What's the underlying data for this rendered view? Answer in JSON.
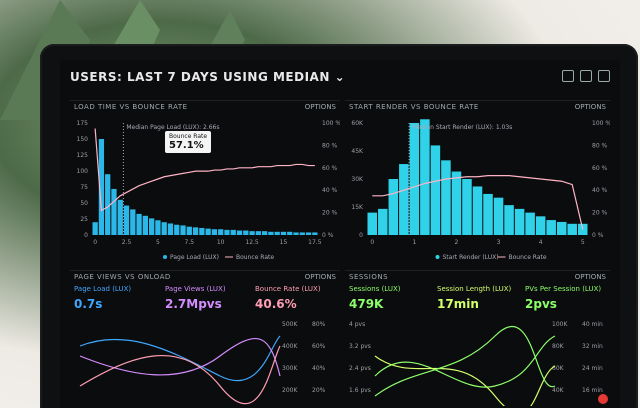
{
  "header": {
    "prefix": "USERS:",
    "range": "LAST 7 DAYS",
    "using": "USING",
    "metric": "MEDIAN"
  },
  "panels": {
    "load_vs_bounce": {
      "title": "LOAD TIME VS BOUNCE RATE",
      "options": "OPTIONS",
      "median_label": "Median Page Load (LUX): 2.66s",
      "tooltip_label": "Bounce Rate",
      "tooltip_value": "57.1%",
      "legend": [
        "Page Load (LUX)",
        "Bounce Rate"
      ]
    },
    "start_render": {
      "title": "START RENDER VS BOUNCE RATE",
      "options": "OPTIONS",
      "median_label": "Median Start Render (LUX): 1.03s",
      "legend": [
        "Start Render (LUX)",
        "Bounce Rate"
      ]
    },
    "page_views": {
      "title": "PAGE VIEWS VS ONLOAD",
      "options": "OPTIONS",
      "kpis": [
        {
          "label": "Page Load (LUX)",
          "value": "0.7s"
        },
        {
          "label": "Page Views (LUX)",
          "value": "2.7Mpvs"
        },
        {
          "label": "Bounce Rate (LUX)",
          "value": "40.6%"
        }
      ],
      "y_right": [
        "500K",
        "400K",
        "300K",
        "200K"
      ],
      "y_right2": [
        "80%",
        "60%",
        "40%",
        "20%"
      ]
    },
    "sessions": {
      "title": "SESSIONS",
      "options": "OPTIONS",
      "kpis": [
        {
          "label": "Sessions (LUX)",
          "value": "479K"
        },
        {
          "label": "Session Length (LUX)",
          "value": "17min"
        },
        {
          "label": "PVs Per Session (LUX)",
          "value": "2pvs"
        }
      ],
      "y_left": [
        "4 pvs",
        "3.2 pvs",
        "2.4 pvs",
        "1.6 pvs"
      ],
      "y_right": [
        "100K",
        "80K",
        "60K",
        "40K"
      ],
      "y_right2": [
        "40 min",
        "32 min",
        "24 min",
        "16 min"
      ]
    }
  },
  "chart_data": [
    {
      "type": "bar",
      "title": "LOAD TIME VS BOUNCE RATE",
      "x": [
        0,
        0.5,
        1,
        1.5,
        2,
        2.5,
        3,
        3.5,
        4,
        4.5,
        5,
        5.5,
        6,
        6.5,
        7,
        7.5,
        8,
        8.5,
        9,
        9.5,
        10,
        10.5,
        11,
        11.5,
        12,
        12.5,
        13,
        13.5,
        14,
        14.5,
        15,
        15.5,
        16,
        16.5,
        17,
        17.5
      ],
      "xticks": [
        "0",
        "2.5",
        "5",
        "7.5",
        "10",
        "12.5",
        "15",
        "17.5"
      ],
      "series": [
        {
          "name": "Page Load (LUX)",
          "values": [
            20,
            150,
            95,
            72,
            55,
            46,
            40,
            33,
            30,
            26,
            23,
            20,
            18,
            16,
            15,
            13,
            12,
            11,
            10,
            9,
            9,
            8,
            8,
            7,
            7,
            6,
            6,
            6,
            5,
            5,
            5,
            5,
            4,
            4,
            4,
            4
          ]
        },
        {
          "name": "Bounce Rate",
          "values": [
            95,
            22,
            25,
            30,
            35,
            38,
            41,
            44,
            46,
            48,
            50,
            52,
            53,
            54,
            55,
            56,
            57,
            57,
            57,
            58,
            58,
            59,
            59,
            60,
            60,
            60,
            61,
            61,
            61,
            62,
            62,
            62,
            63,
            63,
            62,
            62
          ]
        }
      ],
      "ylim_left": [
        0,
        175
      ],
      "yticks_left": [
        "0",
        "25",
        "50",
        "75",
        "100",
        "125",
        "150",
        "175"
      ],
      "ylim_right": [
        0,
        100
      ],
      "yticks_right": [
        "0 %",
        "20 %",
        "40 %",
        "60 %",
        "80 %",
        "100 %"
      ]
    },
    {
      "type": "bar",
      "title": "START RENDER VS BOUNCE RATE",
      "x": [
        0,
        0.25,
        0.5,
        0.75,
        1,
        1.25,
        1.5,
        1.75,
        2,
        2.25,
        2.5,
        2.75,
        3,
        3.25,
        3.5,
        3.75,
        4,
        4.25,
        4.5,
        4.75,
        5
      ],
      "xticks": [
        "0",
        "1",
        "2",
        "3",
        "4",
        "5"
      ],
      "series": [
        {
          "name": "Start Render (LUX)",
          "values": [
            12,
            14,
            30,
            38,
            60,
            62,
            48,
            40,
            34,
            30,
            26,
            22,
            20,
            16,
            14,
            12,
            10,
            8,
            7,
            6,
            6
          ]
        },
        {
          "name": "Bounce Rate",
          "values": [
            35,
            35,
            37,
            40,
            43,
            46,
            48,
            50,
            51,
            52,
            52,
            53,
            53,
            53,
            52,
            51,
            50,
            49,
            48,
            45,
            5
          ]
        }
      ],
      "ylim_left": [
        0,
        60
      ],
      "yticks_left": [
        "0",
        "15K",
        "30K",
        "45K",
        "60K"
      ],
      "ylim_right": [
        0,
        100
      ],
      "yticks_right": [
        "0 %",
        "20 %",
        "40 %",
        "60 %",
        "80 %",
        "100 %"
      ]
    }
  ],
  "colors": {
    "bars": "#2bb8e8",
    "cyan": "#2fd2e8",
    "bounce": "#ffb3c6",
    "purple": "#d58cff",
    "pink": "#ff9eb5",
    "green": "#8dff6b",
    "yellow": "#d2ff6b",
    "blue": "#3fa7ff"
  }
}
